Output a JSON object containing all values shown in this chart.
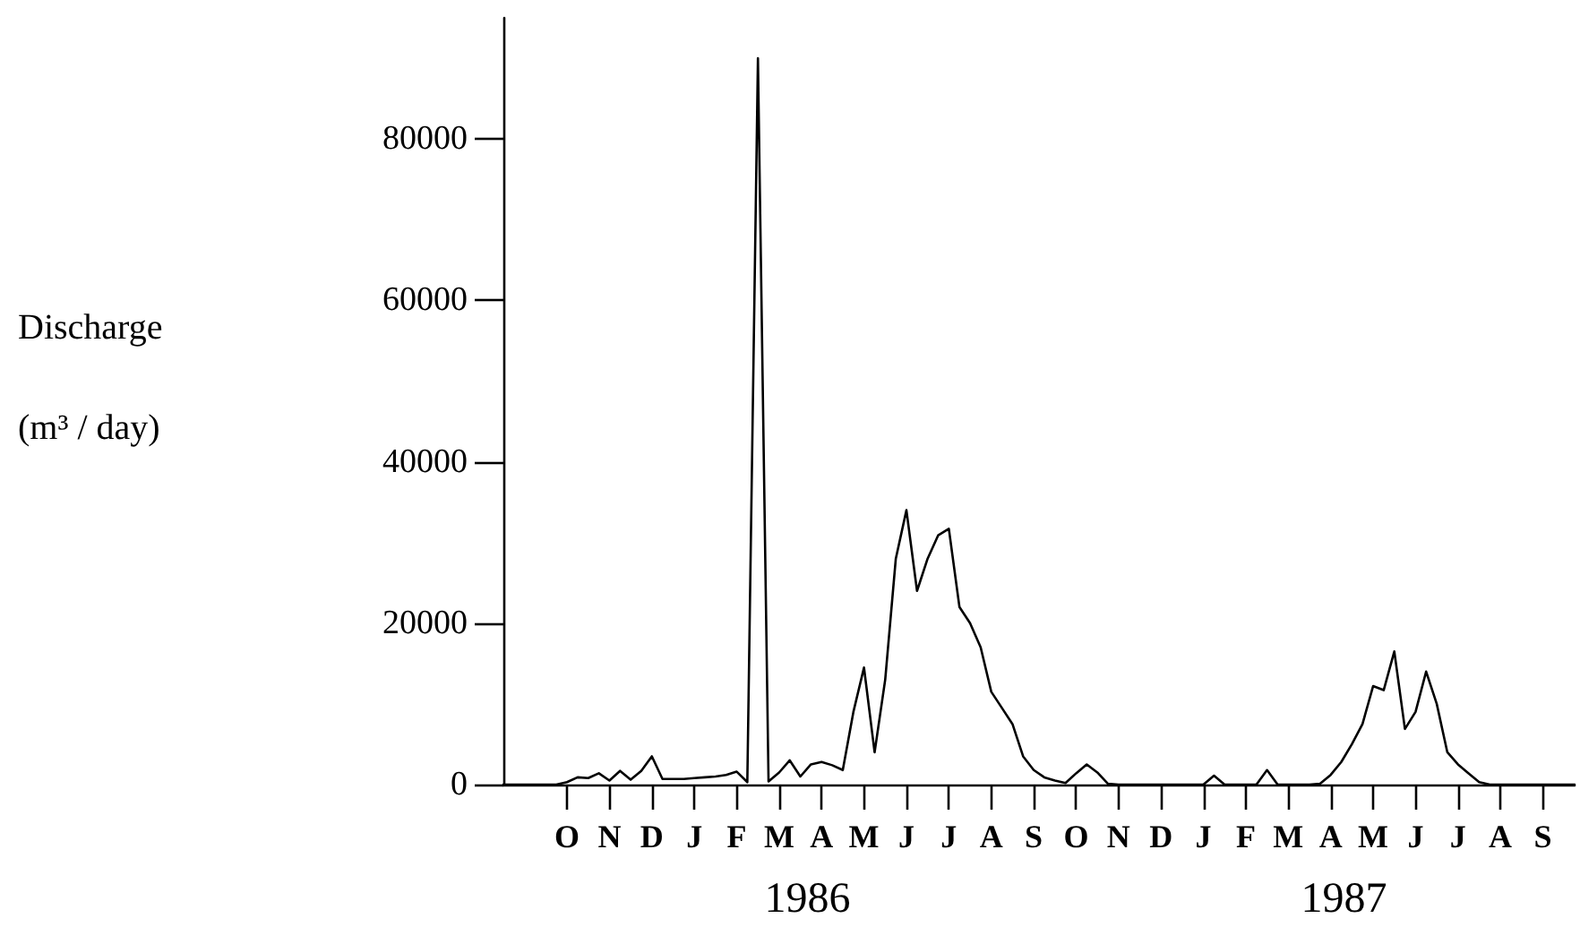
{
  "chart_data": {
    "type": "line",
    "ylabel": "Discharge (m³ / day)",
    "annotations": [
      "1986",
      "1987"
    ],
    "categories": [
      null,
      null,
      null,
      null,
      null,
      null,
      "O",
      null,
      null,
      null,
      "N",
      null,
      null,
      null,
      "D",
      null,
      null,
      null,
      "J",
      null,
      null,
      null,
      "F",
      null,
      null,
      null,
      "M",
      null,
      null,
      null,
      "A",
      null,
      null,
      null,
      "M",
      null,
      null,
      null,
      "J",
      null,
      null,
      null,
      "J",
      null,
      null,
      null,
      "A",
      null,
      null,
      null,
      "S",
      null,
      null,
      null,
      "O",
      null,
      null,
      null,
      "N",
      null,
      null,
      null,
      "D",
      null,
      null,
      null,
      "J",
      null,
      null,
      null,
      "F",
      null,
      null,
      null,
      "M",
      null,
      null,
      null,
      "A",
      null,
      null,
      null,
      "M",
      null,
      null,
      null,
      "J",
      null,
      null,
      null,
      "J",
      null,
      null,
      null,
      "A",
      null,
      null,
      null,
      "S",
      null,
      null,
      null
    ],
    "ylim": [
      0,
      95000
    ],
    "yticks": [
      0,
      20000,
      40000,
      60000,
      80000
    ],
    "grid": false,
    "marker": "none",
    "line_style": "solid",
    "series": [
      {
        "color": "#000000",
        "values": [
          0,
          0,
          0,
          0,
          0,
          0,
          300,
          900,
          800,
          1400,
          500,
          1700,
          600,
          1700,
          3500,
          700,
          700,
          700,
          800,
          900,
          1000,
          1200,
          1600,
          300,
          90000,
          400,
          1500,
          3000,
          1000,
          2500,
          2800,
          2400,
          1800,
          9000,
          14500,
          4000,
          13000,
          28000,
          34000,
          24000,
          28000,
          30900,
          31700,
          22000,
          20000,
          17000,
          11500,
          9500,
          7500,
          3500,
          1800,
          900,
          500,
          200,
          1400,
          2500,
          1500,
          100,
          0,
          0,
          0,
          0,
          0,
          0,
          0,
          0,
          0,
          1100,
          0,
          0,
          0,
          0,
          1800,
          0,
          0,
          0,
          0,
          100,
          1200,
          2800,
          5000,
          7500,
          12200,
          11700,
          16500,
          6900,
          9000,
          14000,
          10000,
          4000,
          2500,
          1400,
          300,
          0,
          0,
          0,
          0,
          0,
          0,
          0,
          0,
          0
        ]
      }
    ]
  }
}
